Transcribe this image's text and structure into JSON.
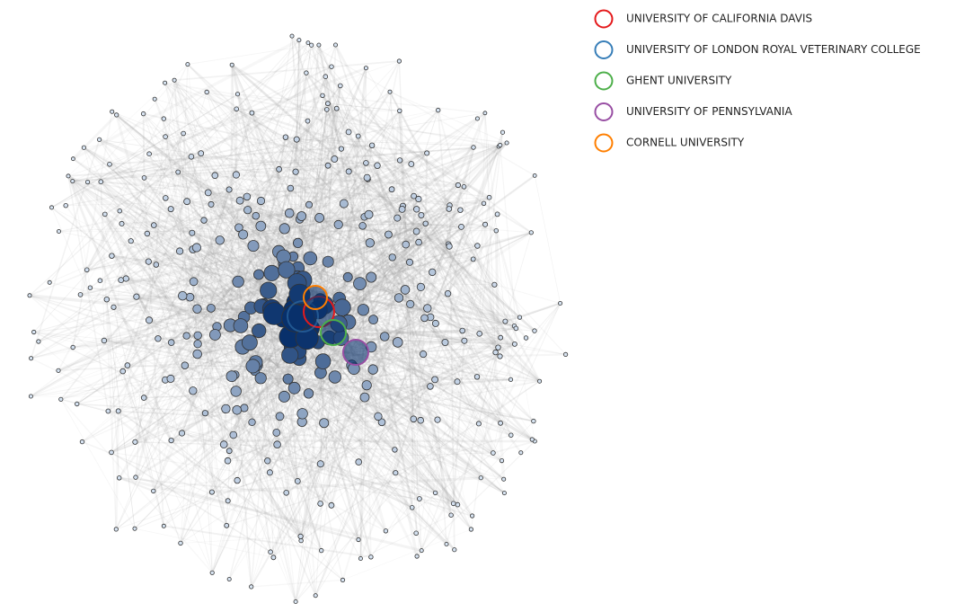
{
  "legend": {
    "items": [
      {
        "label": "UNIVERSITY OF CALIFORNIA DAVIS",
        "color": "#e41a1c"
      },
      {
        "label": "UNIVERSITY OF LONDON ROYAL VETERINARY COLLEGE",
        "color": "#377eb8"
      },
      {
        "label": "GHENT UNIVERSITY",
        "color": "#4daf4a"
      },
      {
        "label": "UNIVERSITY OF PENNSYLVANIA",
        "color": "#984ea3"
      },
      {
        "label": "CORNELL UNIVERSITY",
        "color": "#ff7f00"
      }
    ]
  }
}
